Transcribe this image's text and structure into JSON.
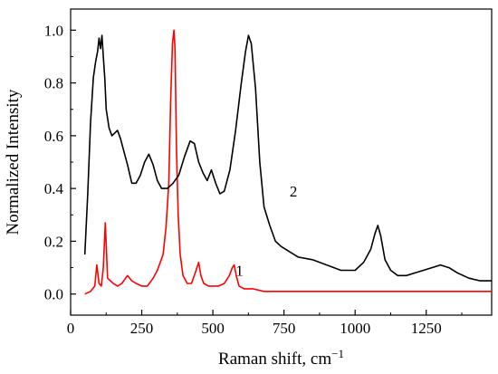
{
  "chart_data": {
    "type": "line",
    "xlabel": "Raman shift, cm",
    "xlabel_superscript": "−1",
    "ylabel": "Normalized Intensity",
    "xlim": [
      0,
      1480
    ],
    "ylim": [
      -0.08,
      1.08
    ],
    "x_ticks": [
      0,
      250,
      500,
      750,
      1000,
      1250
    ],
    "x_tick_labels": [
      "0",
      "250",
      "500",
      "750",
      "1000",
      "1250"
    ],
    "y_ticks": [
      0.0,
      0.2,
      0.4,
      0.6,
      0.8,
      1.0
    ],
    "y_tick_labels": [
      "0.0",
      "0.2",
      "0.4",
      "0.6",
      "0.8",
      "1.0"
    ],
    "grid": false,
    "series": [
      {
        "label": "1",
        "color": "#ff0000",
        "label_at": [
          580,
          0.07
        ],
        "x": [
          50,
          70,
          85,
          92,
          100,
          108,
          115,
          122,
          130,
          140,
          150,
          165,
          180,
          200,
          215,
          230,
          250,
          270,
          290,
          305,
          315,
          325,
          335,
          345,
          352,
          358,
          363,
          367,
          372,
          378,
          385,
          395,
          410,
          425,
          438,
          450,
          458,
          468,
          485,
          500,
          520,
          540,
          558,
          568,
          575,
          582,
          592,
          610,
          640,
          680,
          750,
          850,
          1000,
          1100,
          1200,
          1300,
          1400,
          1480
        ],
        "y": [
          0.0,
          0.01,
          0.03,
          0.11,
          0.04,
          0.03,
          0.1,
          0.27,
          0.06,
          0.05,
          0.04,
          0.03,
          0.04,
          0.07,
          0.05,
          0.04,
          0.03,
          0.03,
          0.06,
          0.09,
          0.12,
          0.15,
          0.25,
          0.42,
          0.75,
          0.95,
          1.0,
          0.93,
          0.55,
          0.3,
          0.15,
          0.07,
          0.04,
          0.04,
          0.08,
          0.12,
          0.07,
          0.04,
          0.03,
          0.03,
          0.03,
          0.04,
          0.07,
          0.1,
          0.11,
          0.07,
          0.03,
          0.02,
          0.02,
          0.01,
          0.01,
          0.01,
          0.01,
          0.01,
          0.01,
          0.01,
          0.01,
          0.01
        ]
      },
      {
        "label": "2",
        "color": "#000000",
        "label_at": [
          770,
          0.37
        ],
        "x": [
          50,
          60,
          70,
          80,
          88,
          95,
          100,
          105,
          110,
          115,
          120,
          125,
          135,
          145,
          155,
          165,
          175,
          185,
          200,
          215,
          230,
          245,
          260,
          275,
          290,
          305,
          320,
          340,
          360,
          380,
          400,
          420,
          435,
          450,
          465,
          480,
          495,
          510,
          525,
          540,
          560,
          580,
          600,
          615,
          625,
          635,
          650,
          665,
          680,
          700,
          720,
          740,
          770,
          800,
          850,
          900,
          950,
          1000,
          1030,
          1055,
          1070,
          1080,
          1090,
          1105,
          1125,
          1150,
          1180,
          1210,
          1240,
          1270,
          1300,
          1330,
          1360,
          1400,
          1440,
          1480
        ],
        "y": [
          0.15,
          0.38,
          0.65,
          0.82,
          0.88,
          0.92,
          0.97,
          0.93,
          0.98,
          0.9,
          0.82,
          0.7,
          0.63,
          0.6,
          0.61,
          0.62,
          0.59,
          0.55,
          0.49,
          0.42,
          0.42,
          0.45,
          0.5,
          0.53,
          0.49,
          0.43,
          0.4,
          0.4,
          0.42,
          0.45,
          0.52,
          0.58,
          0.57,
          0.5,
          0.46,
          0.43,
          0.47,
          0.42,
          0.38,
          0.39,
          0.47,
          0.62,
          0.8,
          0.92,
          0.98,
          0.95,
          0.78,
          0.5,
          0.33,
          0.26,
          0.2,
          0.18,
          0.16,
          0.14,
          0.13,
          0.11,
          0.09,
          0.09,
          0.12,
          0.17,
          0.23,
          0.26,
          0.22,
          0.13,
          0.09,
          0.07,
          0.07,
          0.08,
          0.09,
          0.1,
          0.11,
          0.1,
          0.08,
          0.06,
          0.05,
          0.05
        ]
      }
    ]
  }
}
